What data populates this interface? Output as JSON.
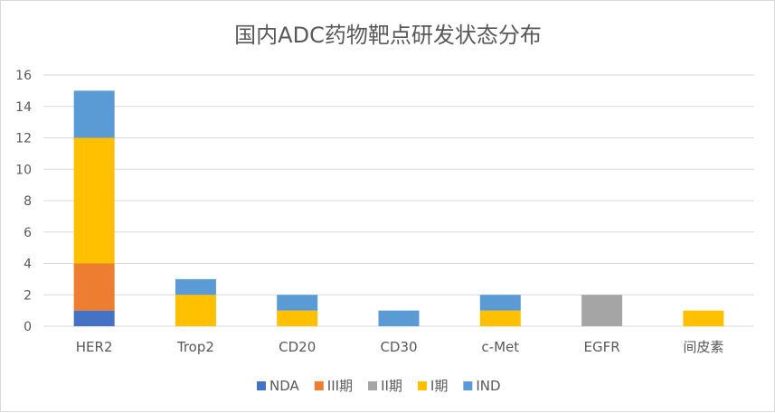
{
  "chart_data": {
    "type": "bar",
    "stacked": true,
    "title": "国内ADC药物靶点研发状态分布",
    "xlabel": "",
    "ylabel": "",
    "ylim": [
      0,
      16
    ],
    "yticks": [
      0,
      2,
      4,
      6,
      8,
      10,
      12,
      14,
      16
    ],
    "grid": true,
    "legend_position": "bottom",
    "categories": [
      "HER2",
      "Trop2",
      "CD20",
      "CD30",
      "c-Met",
      "EGFR",
      "间皮素"
    ],
    "series": [
      {
        "name": "NDA",
        "color": "#4472C4",
        "values": [
          1,
          0,
          0,
          0,
          0,
          0,
          0
        ]
      },
      {
        "name": "III期",
        "color": "#ED7D31",
        "values": [
          3,
          0,
          0,
          0,
          0,
          0,
          0
        ]
      },
      {
        "name": "II期",
        "color": "#A5A5A5",
        "values": [
          0,
          0,
          0,
          0,
          0,
          2,
          0
        ]
      },
      {
        "name": "I期",
        "color": "#FFC000",
        "values": [
          8,
          2,
          1,
          0,
          1,
          0,
          1
        ]
      },
      {
        "name": "IND",
        "color": "#5B9BD5",
        "values": [
          3,
          1,
          1,
          1,
          1,
          0,
          0
        ]
      }
    ]
  }
}
